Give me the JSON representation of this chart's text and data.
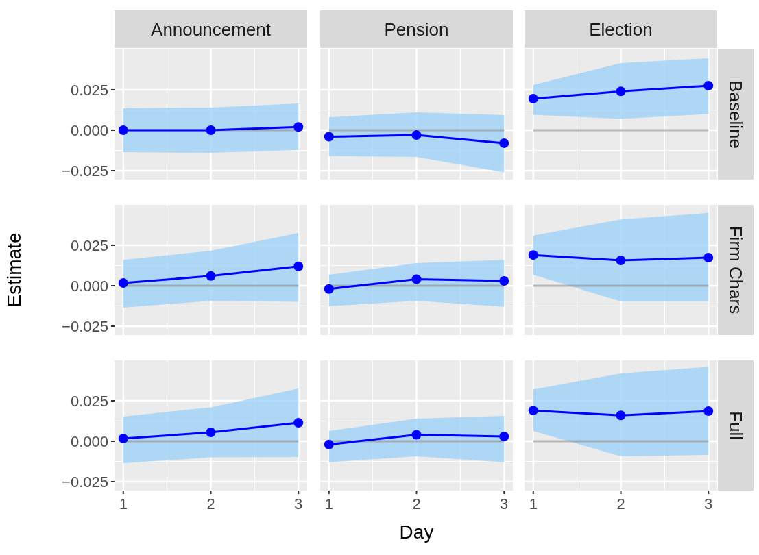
{
  "chart_data": [
    {
      "type": "line",
      "title": "Announcement",
      "x": [
        1,
        2,
        3
      ],
      "xlim": [
        0.9,
        3.1
      ],
      "ylim": [
        -0.0305,
        0.05
      ],
      "xticks": [
        1,
        2,
        3
      ],
      "yticks": [
        {
          "value": -0.025,
          "label": "−0.025"
        },
        {
          "value": 0,
          "label": "0.000"
        },
        {
          "value": 0.025,
          "label": "0.025"
        }
      ],
      "grid": true,
      "tick_labels": "y",
      "marker": "circle",
      "ref_lines": [
        {
          "axis": "y",
          "value": 0,
          "color": "#999999"
        }
      ],
      "series": [
        {
          "color": "#0000ff",
          "values": [
            0,
            0,
            0.002
          ],
          "lower": [
            -0.0136,
            -0.014,
            -0.0123
          ],
          "upper": [
            0.0136,
            0.014,
            0.0165
          ]
        }
      ]
    },
    {
      "type": "line",
      "title": "Pension",
      "x": [
        1,
        2,
        3
      ],
      "xlim": [
        0.9,
        3.1
      ],
      "ylim": [
        -0.0305,
        0.05
      ],
      "xticks": [
        1,
        2,
        3
      ],
      "yticks": [
        -0.025,
        0,
        0.025
      ],
      "grid": true,
      "tick_labels": false,
      "marker": "circle",
      "ref_lines": [
        {
          "axis": "y",
          "value": 0,
          "color": "#999999"
        }
      ],
      "series": [
        {
          "color": "#0000ff",
          "values": [
            -0.004,
            -0.003,
            -0.008
          ],
          "lower": [
            -0.016,
            -0.0165,
            -0.026
          ],
          "upper": [
            0.008,
            0.011,
            0.0093
          ]
        }
      ]
    },
    {
      "type": "line",
      "title": "Election",
      "y2label": "Baseline",
      "x": [
        1,
        2,
        3
      ],
      "xlim": [
        0.9,
        3.1
      ],
      "ylim": [
        -0.0305,
        0.05
      ],
      "xticks": [
        1,
        2,
        3
      ],
      "yticks": [
        -0.025,
        0,
        0.025
      ],
      "grid": true,
      "tick_labels": false,
      "marker": "circle",
      "ref_lines": [
        {
          "axis": "y",
          "value": 0,
          "color": "#999999"
        }
      ],
      "series": [
        {
          "color": "#0000ff",
          "values": [
            0.0195,
            0.024,
            0.0275
          ],
          "lower": [
            0.0095,
            0.007,
            0.01
          ],
          "upper": [
            0.028,
            0.0415,
            0.0445
          ]
        }
      ]
    },
    {
      "type": "line",
      "ylabel": "Estimate",
      "x": [
        1,
        2,
        3
      ],
      "xlim": [
        0.9,
        3.1
      ],
      "ylim": [
        -0.0305,
        0.05
      ],
      "xticks": [
        1,
        2,
        3
      ],
      "yticks": [
        {
          "value": -0.025,
          "label": "−0.025"
        },
        {
          "value": 0,
          "label": "0.000"
        },
        {
          "value": 0.025,
          "label": "0.025"
        }
      ],
      "grid": true,
      "tick_labels": "y",
      "marker": "circle",
      "ref_lines": [
        {
          "axis": "y",
          "value": 0,
          "color": "#999999"
        }
      ],
      "series": [
        {
          "color": "#0000ff",
          "values": [
            0.0017,
            0.006,
            0.012
          ],
          "lower": [
            -0.0136,
            -0.0093,
            -0.01
          ],
          "upper": [
            0.016,
            0.0216,
            0.0326
          ]
        }
      ]
    },
    {
      "type": "line",
      "x": [
        1,
        2,
        3
      ],
      "xlim": [
        0.9,
        3.1
      ],
      "ylim": [
        -0.0305,
        0.05
      ],
      "xticks": [
        1,
        2,
        3
      ],
      "yticks": [
        -0.025,
        0,
        0.025
      ],
      "grid": true,
      "tick_labels": false,
      "marker": "circle",
      "ref_lines": [
        {
          "axis": "y",
          "value": 0,
          "color": "#999999"
        }
      ],
      "series": [
        {
          "color": "#0000ff",
          "values": [
            -0.002,
            0.004,
            0.003
          ],
          "lower": [
            -0.0127,
            -0.0093,
            -0.013
          ],
          "upper": [
            0.0068,
            0.014,
            0.016
          ]
        }
      ]
    },
    {
      "type": "line",
      "y2label": "Firm Chars",
      "x": [
        1,
        2,
        3
      ],
      "xlim": [
        0.9,
        3.1
      ],
      "ylim": [
        -0.0305,
        0.05
      ],
      "xticks": [
        1,
        2,
        3
      ],
      "yticks": [
        -0.025,
        0,
        0.025
      ],
      "grid": true,
      "tick_labels": false,
      "marker": "circle",
      "ref_lines": [
        {
          "axis": "y",
          "value": 0,
          "color": "#999999"
        }
      ],
      "series": [
        {
          "color": "#0000ff",
          "values": [
            0.019,
            0.0157,
            0.0174
          ],
          "lower": [
            0.0068,
            -0.0097,
            -0.0097
          ],
          "upper": [
            0.031,
            0.041,
            0.045
          ]
        }
      ]
    },
    {
      "type": "line",
      "x": [
        1,
        2,
        3
      ],
      "xlim": [
        0.9,
        3.1
      ],
      "ylim": [
        -0.0305,
        0.05
      ],
      "xticks": [
        1,
        2,
        3
      ],
      "yticks": [
        {
          "value": -0.025,
          "label": "−0.025"
        },
        {
          "value": 0,
          "label": "0.000"
        },
        {
          "value": 0.025,
          "label": "0.025"
        }
      ],
      "grid": true,
      "marker": "circle",
      "ref_lines": [
        {
          "axis": "y",
          "value": 0,
          "color": "#999999"
        }
      ],
      "series": [
        {
          "color": "#0000ff",
          "values": [
            0.0017,
            0.0055,
            0.0114
          ],
          "lower": [
            -0.0136,
            -0.01,
            -0.0097
          ],
          "upper": [
            0.0153,
            0.021,
            0.0326
          ]
        }
      ]
    },
    {
      "type": "line",
      "xlabel": "Day",
      "x": [
        1,
        2,
        3
      ],
      "xlim": [
        0.9,
        3.1
      ],
      "ylim": [
        -0.0305,
        0.05
      ],
      "xticks": [
        1,
        2,
        3
      ],
      "yticks": [
        -0.025,
        0,
        0.025
      ],
      "grid": true,
      "tick_labels": "x",
      "marker": "circle",
      "ref_lines": [
        {
          "axis": "y",
          "value": 0,
          "color": "#999999"
        }
      ],
      "series": [
        {
          "color": "#0000ff",
          "values": [
            -0.002,
            0.004,
            0.003
          ],
          "lower": [
            -0.013,
            -0.0093,
            -0.013
          ],
          "upper": [
            0.0064,
            0.014,
            0.0157
          ]
        }
      ]
    },
    {
      "type": "line",
      "y2label": "Full",
      "x": [
        1,
        2,
        3
      ],
      "xlim": [
        0.9,
        3.1
      ],
      "ylim": [
        -0.0305,
        0.05
      ],
      "xticks": [
        1,
        2,
        3
      ],
      "yticks": [
        -0.025,
        0,
        0.025
      ],
      "grid": true,
      "tick_labels": "x",
      "marker": "circle",
      "ref_lines": [
        {
          "axis": "y",
          "value": 0,
          "color": "#999999"
        }
      ],
      "series": [
        {
          "color": "#0000ff",
          "values": [
            0.019,
            0.016,
            0.0186
          ],
          "lower": [
            0.0064,
            -0.0093,
            -0.0085
          ],
          "upper": [
            0.032,
            0.042,
            0.046
          ]
        }
      ]
    }
  ]
}
